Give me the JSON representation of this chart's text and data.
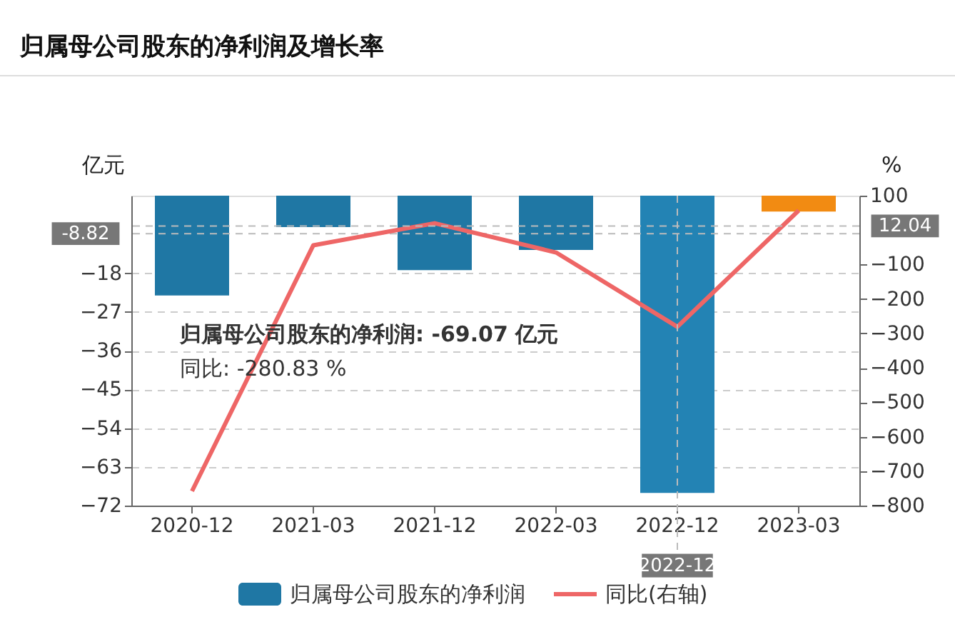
{
  "chart_data": {
    "type": "bar",
    "title": "归属母公司股东的净利润及增长率",
    "ylabel": "亿元",
    "y2label": "%",
    "categories": [
      "2020-12",
      "2021-03",
      "2021-12",
      "2022-03",
      "2022-12",
      "2023-03"
    ],
    "series": [
      {
        "name": "归属母公司股东的净利润",
        "color": "#1f77a4",
        "colors": [
          "#1f77a4",
          "#1f77a4",
          "#1f77a4",
          "#1f77a4",
          "#2383b4",
          "#f28b12"
        ],
        "values": [
          -23.2,
          -7.3,
          -17.3,
          -12.6,
          -69.07,
          -3.7
        ]
      },
      {
        "name": "同比(右轴)",
        "type": "line",
        "axis": "y2",
        "color": "#ee6666",
        "values": [
          -758,
          -44,
          20,
          -65,
          -280.83,
          57
        ]
      }
    ],
    "ylim": [
      -72,
      0
    ],
    "yticks": [
      -18,
      -27,
      -36,
      -45,
      -54,
      -63,
      -72
    ],
    "y2lim": [
      -800,
      100
    ],
    "y2ticks": [
      100,
      -100,
      -200,
      -300,
      -400,
      -500,
      -600,
      -700,
      -800
    ],
    "ref_lines": [
      {
        "axis": "y",
        "value": -8.82,
        "label": "-8.82",
        "line_style": "dashed"
      },
      {
        "axis": "y2",
        "value": 12.04,
        "label": "12.04",
        "line_style": "dashed"
      },
      {
        "axis": "x",
        "value": "2022-12",
        "label": "2022-12",
        "line_style": "dashed"
      }
    ],
    "annotations": [
      "归属母公司股东的净利润: -69.07  亿元",
      "同比: -280.83  %"
    ],
    "grid": "y",
    "legend": "bottom",
    "marker": "none",
    "line_style": "solid"
  }
}
